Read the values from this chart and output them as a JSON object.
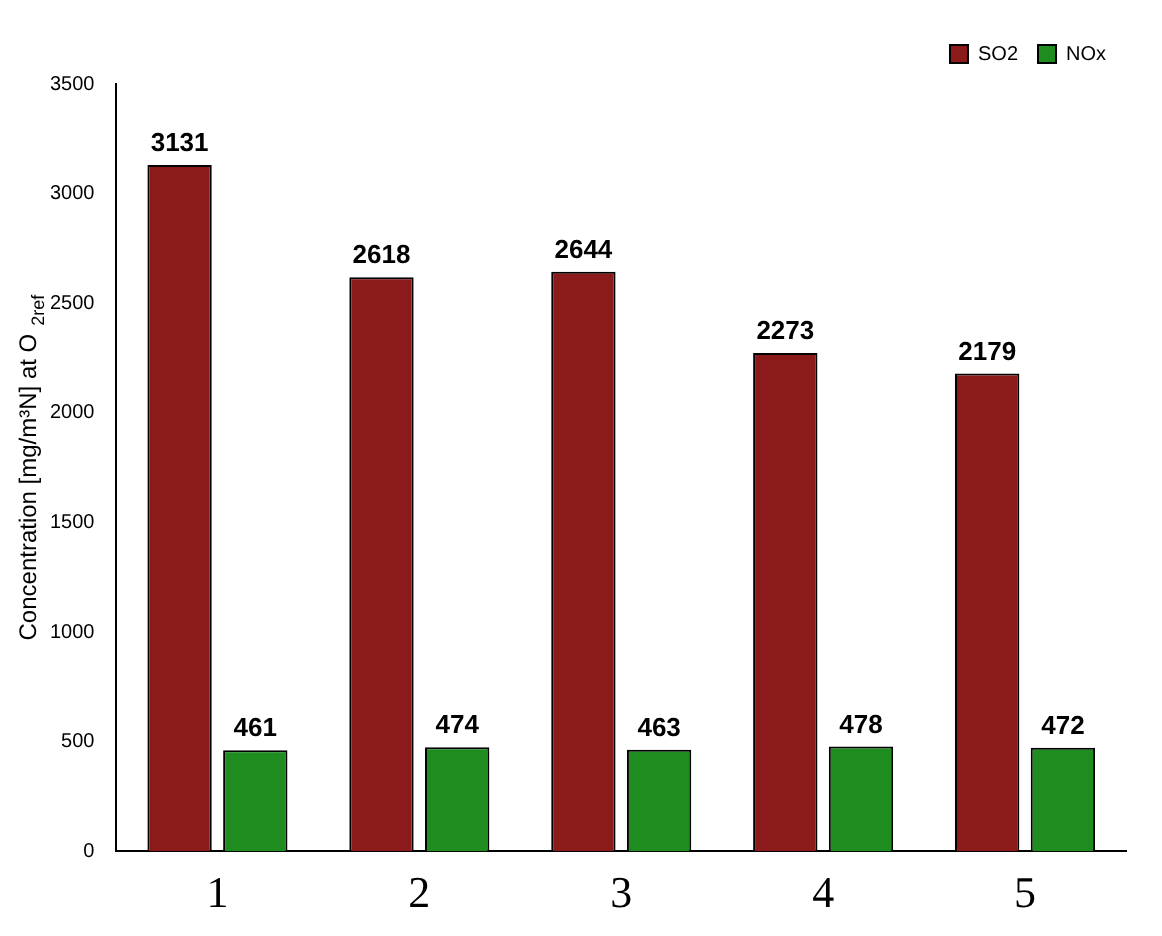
{
  "chart_data": {
    "type": "bar",
    "ylabel": "Concentration [mg/m³N] at O$_{2ref}$",
    "categories": [
      "1",
      "2",
      "3",
      "4",
      "5"
    ],
    "series": [
      {
        "name": "SO2",
        "color": "#8b1a1a",
        "values": [
          3131,
          2618,
          2644,
          2273,
          2179
        ]
      },
      {
        "name": "NOx",
        "color": "#1e8c1e",
        "values": [
          461,
          474,
          463,
          478,
          472
        ]
      }
    ],
    "ylim": [
      0,
      3500
    ],
    "yticks": [
      0,
      500,
      1000,
      1500,
      2000,
      2500,
      3000,
      3500
    ],
    "grid": false,
    "legend": "top right",
    "data_labels": true
  }
}
